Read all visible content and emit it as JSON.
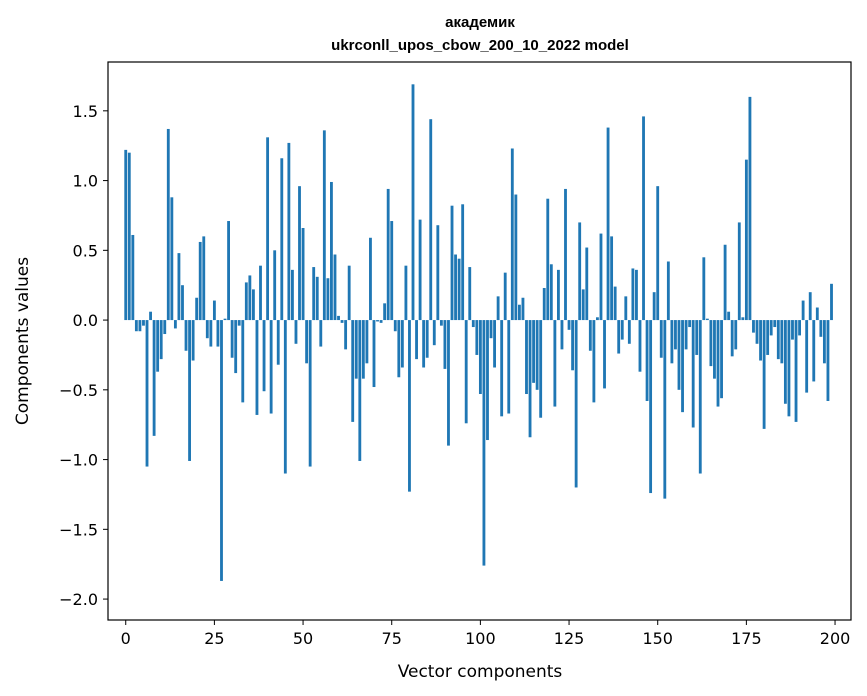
{
  "chart_data": {
    "type": "bar",
    "title_lines": [
      "академик",
      "ukrconll_upos_cbow_200_10_2022 model"
    ],
    "xlabel": "Vector components",
    "ylabel": "Components values",
    "xlim": [
      -5,
      204.5
    ],
    "ylim": [
      -2.15,
      1.85
    ],
    "xticks": [
      0,
      25,
      50,
      75,
      100,
      125,
      150,
      175,
      200
    ],
    "xtick_labels": [
      "0",
      "25",
      "50",
      "75",
      "100",
      "125",
      "150",
      "175",
      "200"
    ],
    "yticks": [
      -2.0,
      -1.5,
      -1.0,
      -0.5,
      0.0,
      0.5,
      1.0,
      1.5
    ],
    "ytick_labels": [
      "−2.0",
      "−1.5",
      "−1.0",
      "−0.5",
      "0.0",
      "0.5",
      "1.0",
      "1.5"
    ],
    "bar_color": "#1f77b4",
    "grid": false,
    "x": [
      0,
      1,
      2,
      3,
      4,
      5,
      6,
      7,
      8,
      9,
      10,
      11,
      12,
      13,
      14,
      15,
      16,
      17,
      18,
      19,
      20,
      21,
      22,
      23,
      24,
      25,
      26,
      27,
      28,
      29,
      30,
      31,
      32,
      33,
      34,
      35,
      36,
      37,
      38,
      39,
      40,
      41,
      42,
      43,
      44,
      45,
      46,
      47,
      48,
      49,
      50,
      51,
      52,
      53,
      54,
      55,
      56,
      57,
      58,
      59,
      60,
      61,
      62,
      63,
      64,
      65,
      66,
      67,
      68,
      69,
      70,
      71,
      72,
      73,
      74,
      75,
      76,
      77,
      78,
      79,
      80,
      81,
      82,
      83,
      84,
      85,
      86,
      87,
      88,
      89,
      90,
      91,
      92,
      93,
      94,
      95,
      96,
      97,
      98,
      99,
      100,
      101,
      102,
      103,
      104,
      105,
      106,
      107,
      108,
      109,
      110,
      111,
      112,
      113,
      114,
      115,
      116,
      117,
      118,
      119,
      120,
      121,
      122,
      123,
      124,
      125,
      126,
      127,
      128,
      129,
      130,
      131,
      132,
      133,
      134,
      135,
      136,
      137,
      138,
      139,
      140,
      141,
      142,
      143,
      144,
      145,
      146,
      147,
      148,
      149,
      150,
      151,
      152,
      153,
      154,
      155,
      156,
      157,
      158,
      159,
      160,
      161,
      162,
      163,
      164,
      165,
      166,
      167,
      168,
      169,
      170,
      171,
      172,
      173,
      174,
      175,
      176,
      177,
      178,
      179,
      180,
      181,
      182,
      183,
      184,
      185,
      186,
      187,
      188,
      189,
      190,
      191,
      192,
      193,
      194,
      195,
      196,
      197,
      198,
      199
    ],
    "values": [
      1.22,
      1.2,
      0.61,
      -0.08,
      -0.08,
      -0.04,
      -1.05,
      0.06,
      -0.83,
      -0.37,
      -0.28,
      -0.1,
      1.37,
      0.88,
      -0.06,
      0.48,
      0.25,
      -0.22,
      -1.01,
      -0.29,
      0.16,
      0.56,
      0.6,
      -0.13,
      -0.19,
      0.14,
      -0.19,
      -1.87,
      0.01,
      0.71,
      -0.27,
      -0.38,
      -0.04,
      -0.59,
      0.27,
      0.32,
      0.22,
      -0.68,
      0.39,
      -0.51,
      1.31,
      -0.67,
      0.5,
      -0.32,
      1.16,
      -1.1,
      1.27,
      0.36,
      -0.17,
      0.96,
      0.66,
      -0.31,
      -1.05,
      0.38,
      0.31,
      -0.19,
      1.36,
      0.3,
      0.99,
      0.47,
      0.03,
      -0.02,
      -0.21,
      0.39,
      -0.73,
      -0.42,
      -1.01,
      -0.42,
      -0.31,
      0.59,
      -0.48,
      -0.01,
      -0.02,
      0.12,
      0.94,
      0.71,
      -0.08,
      -0.41,
      -0.34,
      0.39,
      -1.23,
      1.69,
      -0.28,
      0.72,
      -0.34,
      -0.27,
      1.44,
      -0.18,
      0.68,
      -0.04,
      -0.35,
      -0.9,
      0.82,
      0.47,
      0.44,
      0.83,
      -0.74,
      0.38,
      -0.05,
      -0.25,
      -0.53,
      -1.76,
      -0.86,
      -0.13,
      -0.34,
      0.17,
      -0.69,
      0.34,
      -0.67,
      1.23,
      0.9,
      0.11,
      0.16,
      -0.53,
      -0.84,
      -0.45,
      -0.5,
      -0.7,
      0.23,
      0.87,
      0.4,
      -0.62,
      0.36,
      -0.21,
      0.94,
      -0.07,
      -0.36,
      -1.2,
      0.7,
      0.22,
      0.52,
      -0.22,
      -0.59,
      0.02,
      0.62,
      -0.49,
      1.38,
      0.6,
      0.24,
      -0.24,
      -0.14,
      0.17,
      -0.17,
      0.37,
      0.36,
      -0.37,
      1.46,
      -0.58,
      -1.24,
      0.2,
      0.96,
      -0.27,
      -1.28,
      0.42,
      -0.31,
      -0.21,
      -0.5,
      -0.66,
      -0.21,
      -0.05,
      -0.77,
      -0.25,
      -1.1,
      0.45,
      0.01,
      -0.33,
      -0.42,
      -0.62,
      -0.56,
      0.54,
      0.06,
      -0.26,
      -0.21,
      0.7,
      0.02,
      1.15,
      1.6,
      -0.09,
      -0.17,
      -0.29,
      -0.78,
      -0.25,
      -0.11,
      -0.05,
      -0.28,
      -0.31,
      -0.6,
      -0.69,
      -0.14,
      -0.73,
      -0.11,
      0.14,
      -0.52,
      0.2,
      -0.44,
      0.09,
      -0.12,
      -0.31,
      -0.58,
      0.26
    ]
  }
}
